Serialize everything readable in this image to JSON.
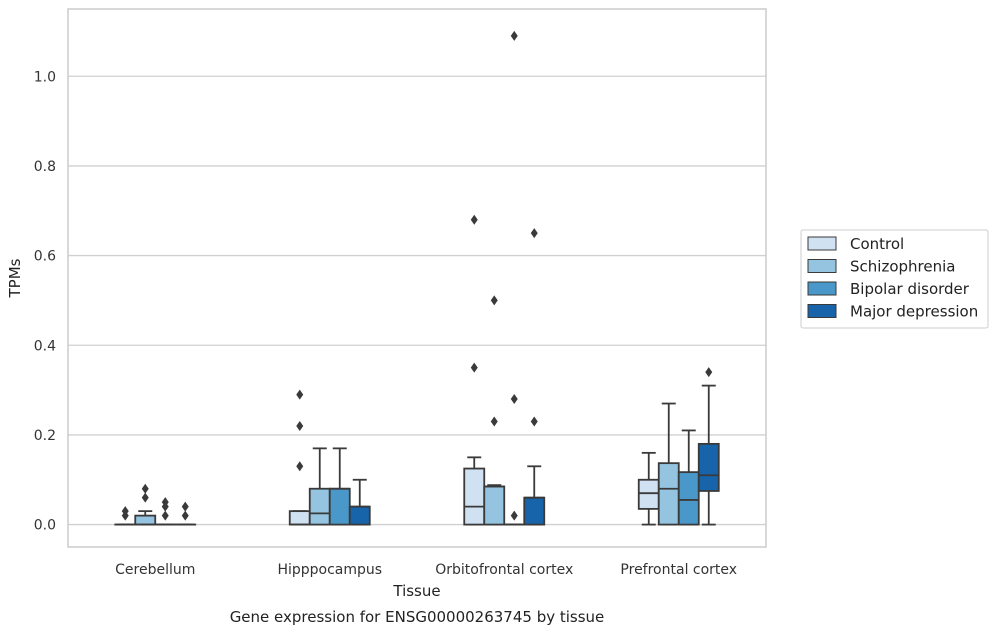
{
  "chart_data": {
    "type": "box",
    "title": "",
    "xlabel": "Tissue",
    "ylabel": "TPMs",
    "caption": "Gene expression for ENSG00000263745 by tissue",
    "categories": [
      "Cerebellum",
      "Hipppocampus",
      "Orbitofrontal cortex",
      "Prefrontal cortex"
    ],
    "ylim": [
      -0.05,
      1.15
    ],
    "yticks": [
      0.0,
      0.2,
      0.4,
      0.6,
      0.8,
      1.0
    ],
    "ytick_labels": [
      "0.0",
      "0.2",
      "0.4",
      "0.6",
      "0.8",
      "1.0"
    ],
    "grid": "horizontal",
    "legend_position": "right",
    "series": [
      {
        "name": "Control",
        "color": "#d0e1f2",
        "boxes": [
          {
            "q1": 0,
            "median": 0,
            "q3": 0,
            "whisker_low": 0,
            "whisker_high": 0,
            "outliers": [
              0.02,
              0.03
            ]
          },
          {
            "q1": 0,
            "median": 0,
            "q3": 0.03,
            "whisker_low": 0,
            "whisker_high": 0.03,
            "outliers": [
              0.13,
              0.22,
              0.29
            ]
          },
          {
            "q1": 0,
            "median": 0.04,
            "q3": 0.125,
            "whisker_low": 0,
            "whisker_high": 0.15,
            "outliers": [
              0.35,
              0.68
            ]
          },
          {
            "q1": 0.035,
            "median": 0.07,
            "q3": 0.1,
            "whisker_low": 0,
            "whisker_high": 0.16,
            "outliers": []
          }
        ]
      },
      {
        "name": "Schizophrenia",
        "color": "#94c4df",
        "boxes": [
          {
            "q1": 0,
            "median": 0,
            "q3": 0.02,
            "whisker_low": 0,
            "whisker_high": 0.03,
            "outliers": [
              0.06,
              0.08
            ]
          },
          {
            "q1": 0,
            "median": 0.025,
            "q3": 0.08,
            "whisker_low": 0,
            "whisker_high": 0.17,
            "outliers": []
          },
          {
            "q1": 0,
            "median": 0.085,
            "q3": 0.085,
            "whisker_low": 0,
            "whisker_high": 0.088,
            "outliers": [
              0.23,
              0.5
            ]
          },
          {
            "q1": 0,
            "median": 0.08,
            "q3": 0.137,
            "whisker_low": 0,
            "whisker_high": 0.27,
            "outliers": []
          }
        ]
      },
      {
        "name": "Bipolar disorder",
        "color": "#4a98c9",
        "boxes": [
          {
            "q1": 0,
            "median": 0,
            "q3": 0,
            "whisker_low": 0,
            "whisker_high": 0,
            "outliers": [
              0.02,
              0.04,
              0.05
            ]
          },
          {
            "q1": 0,
            "median": 0.08,
            "q3": 0.08,
            "whisker_low": 0,
            "whisker_high": 0.17,
            "outliers": []
          },
          {
            "q1": 0,
            "median": 0,
            "q3": 0,
            "whisker_low": 0,
            "whisker_high": 0,
            "outliers": [
              0.02,
              0.28,
              1.09
            ]
          },
          {
            "q1": 0,
            "median": 0.055,
            "q3": 0.117,
            "whisker_low": 0,
            "whisker_high": 0.21,
            "outliers": []
          }
        ]
      },
      {
        "name": "Major depression",
        "color": "#1764ab",
        "boxes": [
          {
            "q1": 0,
            "median": 0,
            "q3": 0,
            "whisker_low": 0,
            "whisker_high": 0,
            "outliers": [
              0.02,
              0.04
            ]
          },
          {
            "q1": 0,
            "median": 0.04,
            "q3": 0.04,
            "whisker_low": 0,
            "whisker_high": 0.1,
            "outliers": []
          },
          {
            "q1": 0,
            "median": 0.06,
            "q3": 0.06,
            "whisker_low": 0,
            "whisker_high": 0.13,
            "outliers": [
              0.23,
              0.65
            ]
          },
          {
            "q1": 0.075,
            "median": 0.11,
            "q3": 0.18,
            "whisker_low": 0,
            "whisker_high": 0.31,
            "outliers": [
              0.34
            ]
          }
        ]
      }
    ]
  }
}
